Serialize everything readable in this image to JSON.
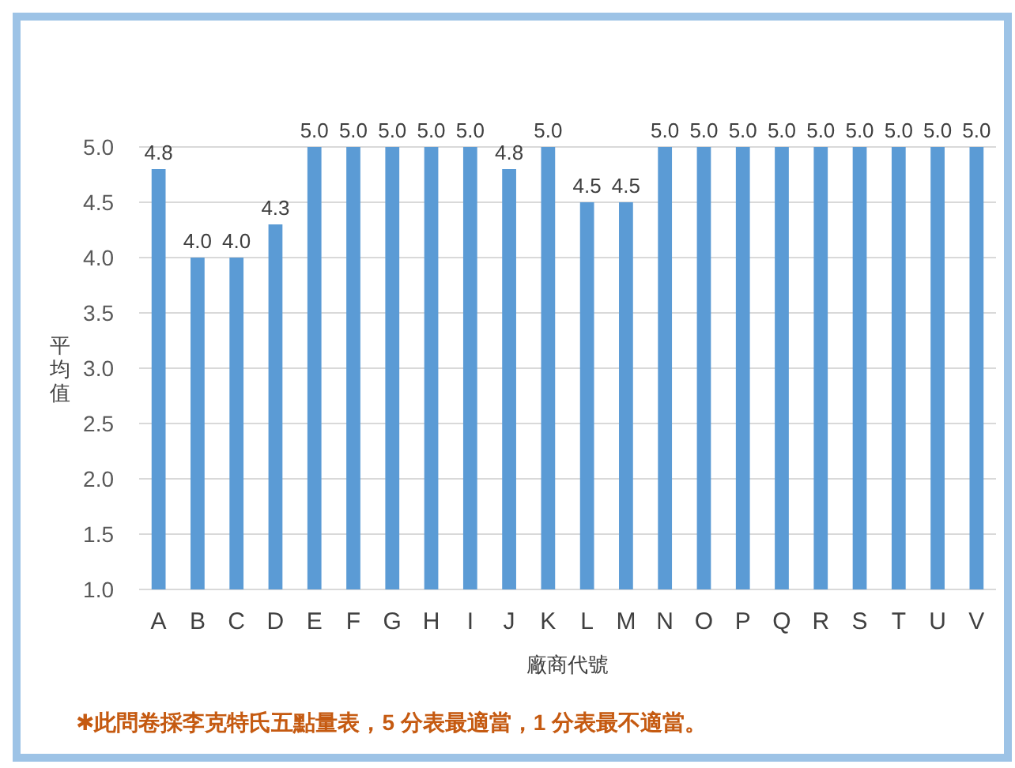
{
  "chart_data": {
    "type": "bar",
    "xlabel": "廠商代號",
    "ylabel": "平均值",
    "categories": [
      "A",
      "B",
      "C",
      "D",
      "E",
      "F",
      "G",
      "H",
      "I",
      "J",
      "K",
      "L",
      "M",
      "N",
      "O",
      "P",
      "Q",
      "R",
      "S",
      "T",
      "U",
      "V"
    ],
    "series": [
      {
        "color": "#5b9bd5",
        "values": [
          4.8,
          4.0,
          4.0,
          4.3,
          5.0,
          5.0,
          5.0,
          5.0,
          5.0,
          4.8,
          5.0,
          4.5,
          4.5,
          5.0,
          5.0,
          5.0,
          5.0,
          5.0,
          5.0,
          5.0,
          5.0,
          5.0
        ],
        "value_labels": [
          "4.8",
          "4.0",
          "4.0",
          "4.3",
          "5.0",
          "5.0",
          "5.0",
          "5.0",
          "5.0",
          "4.8",
          "5.0",
          "4.5",
          "4.5",
          "5.0",
          "5.0",
          "5.0",
          "5.0",
          "5.0",
          "5.0",
          "5.0",
          "5.0",
          "5.0"
        ]
      }
    ],
    "ylim": [
      1.0,
      5.0
    ],
    "yticks": [
      {
        "value": 1,
        "label": "1.0"
      },
      {
        "value": 1.5,
        "label": "1.5"
      },
      {
        "value": 2,
        "label": "2.0"
      },
      {
        "value": 2.5,
        "label": "2.5"
      },
      {
        "value": 3,
        "label": "3.0"
      },
      {
        "value": 3.5,
        "label": "3.5"
      },
      {
        "value": 4,
        "label": "4.0"
      },
      {
        "value": 4.5,
        "label": "4.5"
      },
      {
        "value": 5,
        "label": "5.0"
      }
    ],
    "grid": "y",
    "annotations": [
      "✱此問卷採李克特氏五點量表，5 分表最適當，1 分表最不適當。"
    ]
  }
}
